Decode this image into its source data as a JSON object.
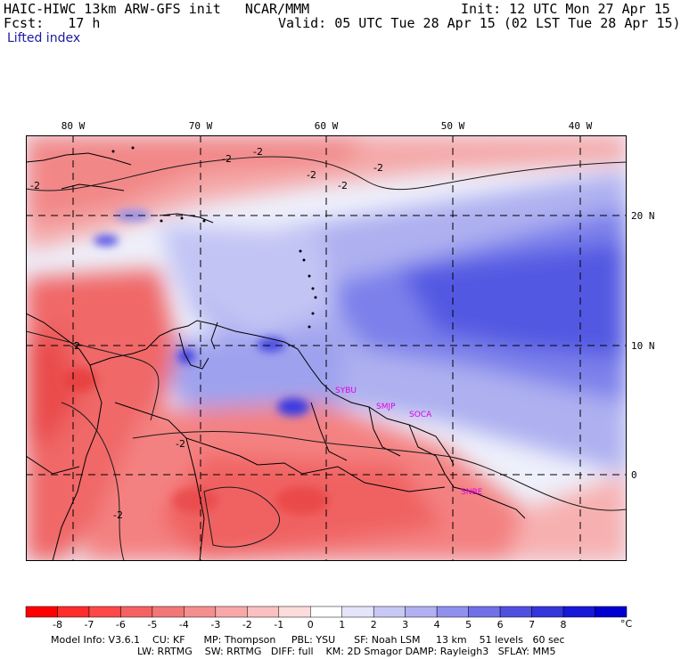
{
  "header": {
    "title_left": "HAIC-HIWC 13km ARW-GFS init   NCAR/MMM",
    "init": "Init: 12 UTC Mon 27 Apr 15",
    "fcst": "Fcst:   17 h",
    "valid": "Valid: 05 UTC Tue 28 Apr 15 (02 LST Tue 28 Apr 15)",
    "field": "Lifted index"
  },
  "map": {
    "lon_labels": [
      "80 W",
      "70 W",
      "60 W",
      "50 W",
      "40 W"
    ],
    "lat_labels": [
      "20 N",
      "10 N",
      "0"
    ],
    "contour_labels": [
      "-2",
      "-2",
      "-2",
      "-2",
      "-2",
      "-2",
      "-2",
      "-2",
      "-2"
    ],
    "city_labels": [
      "SYBU",
      "SMJP",
      "SOCA",
      "SNBE"
    ],
    "colors": {
      "neg_deep": "#ff2020",
      "neg_mid": "#f27777",
      "neg_light": "#fbcaca",
      "pos_light": "#d8d8f6",
      "pos_mid": "#9a9af0",
      "pos_deep": "#4646e0"
    }
  },
  "colorbar": {
    "ticks": [
      "-8",
      "-7",
      "-6",
      "-5",
      "-4",
      "-3",
      "-2",
      "-1",
      "0",
      "1",
      "2",
      "3",
      "4",
      "5",
      "6",
      "7",
      "8"
    ],
    "unit": "°C",
    "colors": [
      "#ff0000",
      "#ff2c2c",
      "#ff4848",
      "#f66262",
      "#f27777",
      "#f58e8e",
      "#f8a8a8",
      "#fbc0c0",
      "#fddcdc",
      "#ffffff",
      "#e4e4fb",
      "#c8c8f4",
      "#b0b0f2",
      "#9090ee",
      "#7070e8",
      "#5050e0",
      "#3535dc",
      "#1818d8",
      "#0000d0"
    ]
  },
  "footer": {
    "line1": "Model Info: V3.6.1    CU: KF      MP: Thompson     PBL: YSU      SF: Noah LSM     13 km    51 levels   60 sec",
    "line2": "LW: RRTMG    SW: RRTMG   DIFF: full    KM: 2D Smagor DAMP: Rayleigh3   SFLAY: MM5"
  }
}
